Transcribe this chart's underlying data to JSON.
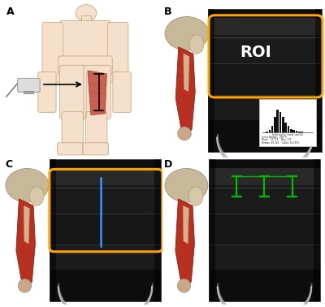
{
  "panel_labels": [
    "A",
    "B",
    "C",
    "D"
  ],
  "label_fontsize": 9,
  "label_fontweight": "bold",
  "background_color": "#ffffff",
  "roi_text": "ROI",
  "roi_text_color": "#ffffff",
  "roi_text_fontsize": 14,
  "orange_color": "#FFA500",
  "blue_color": "#3399FF",
  "green_color": "#00BB00",
  "ultrasound_bg": "#0d0d0d",
  "fig_width": 4.0,
  "fig_height": 3.78
}
